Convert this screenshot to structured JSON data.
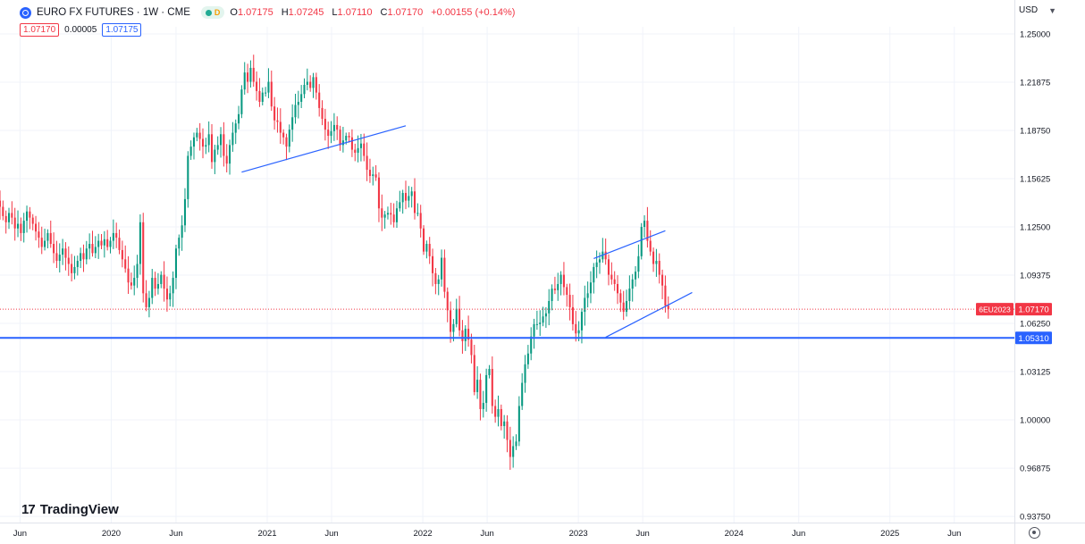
{
  "legend": {
    "title": "EURO FX FUTURES · 1W · CME",
    "status_letter": "D",
    "ohlc": [
      {
        "key": "O",
        "value": "1.07175"
      },
      {
        "key": "H",
        "value": "1.07245"
      },
      {
        "key": "L",
        "value": "1.07110"
      },
      {
        "key": "C",
        "value": "1.07170"
      },
      {
        "key": "",
        "value": "+0.00155 (+0.14%)"
      }
    ],
    "sell_price": "1.07170",
    "spread": "0.00005",
    "buy_price": "1.07175"
  },
  "currency": "USD",
  "brand": "TradingView",
  "colors": {
    "up": "#089981",
    "down": "#f23645",
    "line": "#2962ff",
    "grid": "#f0f3fa"
  },
  "chart_data": {
    "type": "candlestick",
    "title": "",
    "x_range": [
      "2019-04-15",
      "2025-10-20"
    ],
    "y_range": [
      0.9335,
      1.2546
    ],
    "y_ticks": [
      "1.25000",
      "1.21875",
      "1.18750",
      "1.15625",
      "1.12500",
      "1.09375",
      "1.06250",
      "1.03125",
      "1.00000",
      "0.96875",
      "0.93750"
    ],
    "x_ticks": [
      {
        "label": "Jun",
        "date": "2019-06-01"
      },
      {
        "label": "2020",
        "date": "2020-01-01"
      },
      {
        "label": "Jun",
        "date": "2020-06-01"
      },
      {
        "label": "2021",
        "date": "2021-01-01"
      },
      {
        "label": "Jun",
        "date": "2021-06-01"
      },
      {
        "label": "2022",
        "date": "2022-01-01"
      },
      {
        "label": "Jun",
        "date": "2022-06-01"
      },
      {
        "label": "2023",
        "date": "2023-01-01"
      },
      {
        "label": "Jun",
        "date": "2023-06-01"
      },
      {
        "label": "2024",
        "date": "2024-01-01"
      },
      {
        "label": "Jun",
        "date": "2024-06-01"
      },
      {
        "label": "2025",
        "date": "2025-01-01"
      },
      {
        "label": "Jun",
        "date": "2025-06-01"
      }
    ],
    "first_week": "2019-04-15",
    "weekly_closes": [
      1.138,
      1.132,
      1.128,
      1.134,
      1.131,
      1.124,
      1.127,
      1.121,
      1.129,
      1.135,
      1.131,
      1.127,
      1.122,
      1.118,
      1.112,
      1.116,
      1.121,
      1.114,
      1.108,
      1.103,
      1.107,
      1.111,
      1.105,
      1.101,
      1.095,
      1.099,
      1.103,
      1.108,
      1.104,
      1.111,
      1.114,
      1.108,
      1.112,
      1.116,
      1.113,
      1.117,
      1.112,
      1.116,
      1.121,
      1.118,
      1.11,
      1.104,
      1.098,
      1.089,
      1.087,
      1.092,
      1.101,
      1.128,
      1.082,
      1.073,
      1.079,
      1.092,
      1.085,
      1.088,
      1.094,
      1.085,
      1.078,
      1.082,
      1.092,
      1.111,
      1.118,
      1.126,
      1.143,
      1.171,
      1.177,
      1.183,
      1.186,
      1.182,
      1.177,
      1.178,
      1.185,
      1.167,
      1.175,
      1.178,
      1.185,
      1.171,
      1.166,
      1.178,
      1.186,
      1.192,
      1.198,
      1.214,
      1.225,
      1.219,
      1.228,
      1.219,
      1.213,
      1.206,
      1.212,
      1.212,
      1.219,
      1.203,
      1.194,
      1.193,
      1.186,
      1.183,
      1.177,
      1.188,
      1.196,
      1.204,
      1.206,
      1.211,
      1.217,
      1.219,
      1.215,
      1.222,
      1.212,
      1.202,
      1.195,
      1.188,
      1.184,
      1.187,
      1.191,
      1.188,
      1.178,
      1.181,
      1.184,
      1.183,
      1.175,
      1.173,
      1.176,
      1.179,
      1.171,
      1.162,
      1.158,
      1.159,
      1.157,
      1.137,
      1.131,
      1.133,
      1.134,
      1.133,
      1.128,
      1.137,
      1.141,
      1.147,
      1.142,
      1.145,
      1.148,
      1.134,
      1.134,
      1.124,
      1.109,
      1.114,
      1.106,
      1.095,
      1.088,
      1.091,
      1.105,
      1.083,
      1.071,
      1.057,
      1.062,
      1.072,
      1.058,
      1.051,
      1.059,
      1.052,
      1.042,
      1.018,
      1.026,
      1.007,
      1.011,
      1.029,
      1.033,
      1.009,
      1.002,
      1.007,
      0.996,
      0.999,
      0.987,
      0.976,
      0.983,
      0.986,
      1.009,
      1.024,
      1.036,
      1.043,
      1.054,
      1.062,
      1.062,
      1.063,
      1.067,
      1.069,
      1.077,
      1.085,
      1.084,
      1.088,
      1.094,
      1.086,
      1.081,
      1.073,
      1.062,
      1.056,
      1.058,
      1.07,
      1.079,
      1.082,
      1.089,
      1.099,
      1.102,
      1.104,
      1.109,
      1.104,
      1.094,
      1.091,
      1.088,
      1.082,
      1.076,
      1.07,
      1.077,
      1.085,
      1.091,
      1.096,
      1.106,
      1.125,
      1.129,
      1.116,
      1.109,
      1.101,
      1.103,
      1.094,
      1.087,
      1.074,
      1.0717
    ],
    "trendlines": [
      {
        "from": {
          "date": "2020-11-02",
          "price": 1.1605
        },
        "to": {
          "date": "2021-11-22",
          "price": 1.1905
        }
      },
      {
        "from": {
          "date": "2023-02-06",
          "price": 1.1045
        },
        "to": {
          "date": "2023-07-24",
          "price": 1.1225
        }
      },
      {
        "from": {
          "date": "2023-03-06",
          "price": 1.0535
        },
        "to": {
          "date": "2023-09-25",
          "price": 1.0825
        }
      }
    ],
    "horizontal_line": {
      "price": 1.0531,
      "label": "1.05310"
    },
    "last_price": {
      "price": 1.0717,
      "label": "1.07170",
      "symbol": "6EU2023"
    }
  }
}
